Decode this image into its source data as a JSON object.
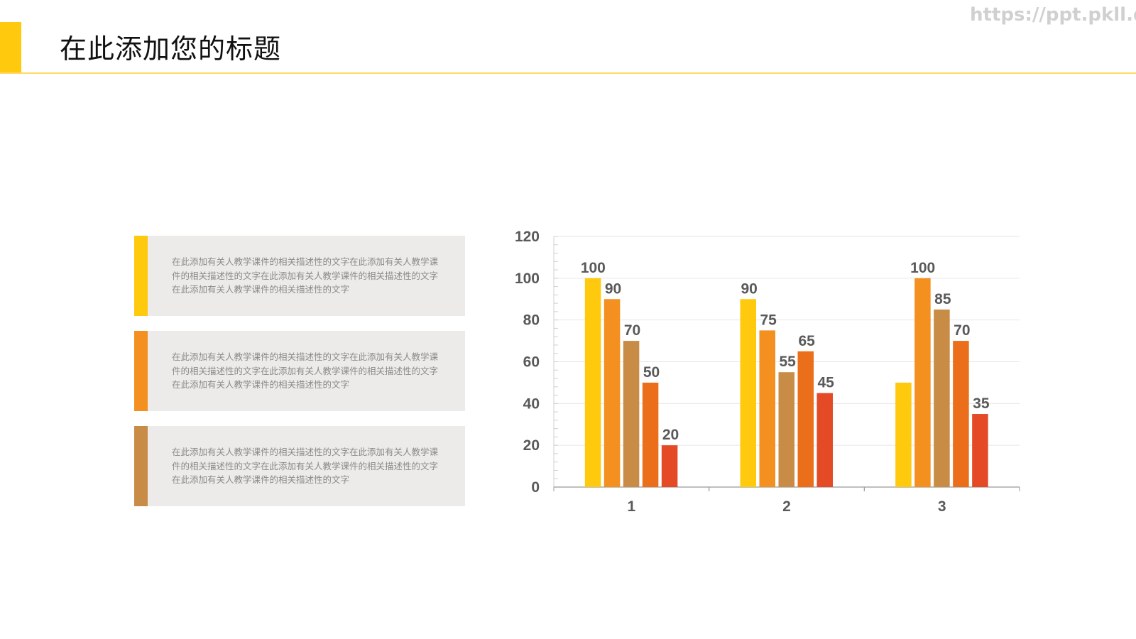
{
  "header": {
    "title": "在此添加您的标题",
    "watermark": "https://ppt.pkll.de",
    "accent_color": "#FFC90E"
  },
  "text_boxes": [
    {
      "text": "在此添加有关人教学课件的相关描述性的文字在此添加有关人教学课件的相关描述性的文字在此添加有关人教学课件的相关描述性的文字在此添加有关人教学课件的相关描述性的文字",
      "color": "#FFC90E"
    },
    {
      "text": "在此添加有关人教学课件的相关描述性的文字在此添加有关人教学课件的相关描述性的文字在此添加有关人教学课件的相关描述性的文字在此添加有关人教学课件的相关描述性的文字",
      "color": "#F39020"
    },
    {
      "text": "在此添加有关人教学课件的相关描述性的文字在此添加有关人教学课件的相关描述性的文字在此添加有关人教学课件的相关描述性的文字在此添加有关人教学课件的相关描述性的文字",
      "color": "#C98C46"
    }
  ],
  "chart_data": {
    "type": "bar",
    "categories": [
      "1",
      "2",
      "3"
    ],
    "series": [
      {
        "values": [
          100,
          90,
          50
        ],
        "color": "#FFC90E",
        "labels_shown": [
          true,
          true,
          false
        ]
      },
      {
        "values": [
          90,
          75,
          100
        ],
        "color": "#F39020",
        "labels_shown": [
          true,
          true,
          true
        ]
      },
      {
        "values": [
          70,
          55,
          85
        ],
        "color": "#C98C46",
        "labels_shown": [
          true,
          true,
          true
        ]
      },
      {
        "values": [
          50,
          65,
          70
        ],
        "color": "#EB6E1B",
        "labels_shown": [
          true,
          true,
          true
        ]
      },
      {
        "values": [
          20,
          45,
          35
        ],
        "color": "#E34A25",
        "labels_shown": [
          true,
          true,
          true
        ]
      }
    ],
    "ylim": [
      0,
      120
    ],
    "yticks": [
      0,
      20,
      40,
      60,
      80,
      100,
      120
    ],
    "grid": true,
    "legend": "none"
  }
}
